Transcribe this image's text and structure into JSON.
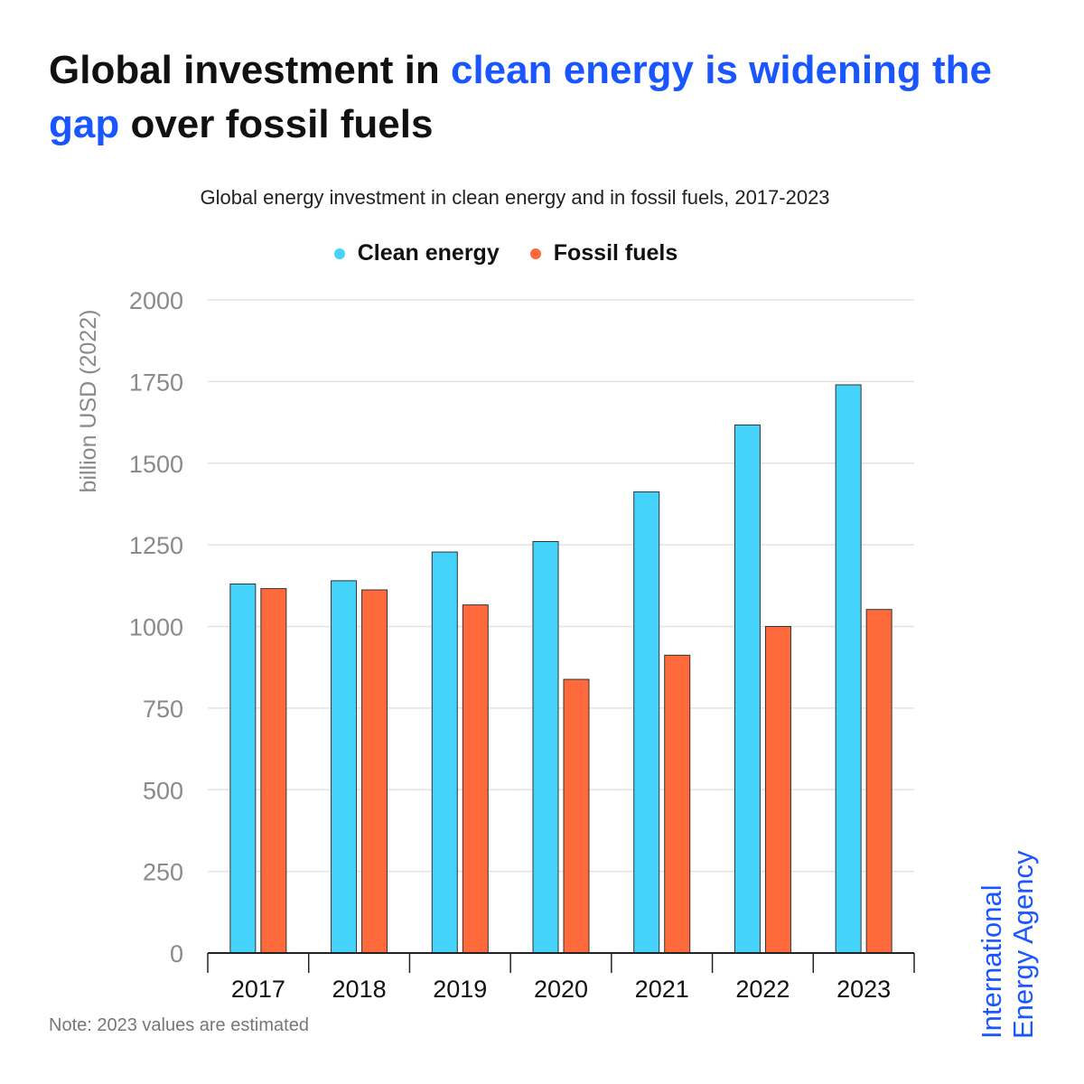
{
  "headline": {
    "part1": "Global investment in ",
    "highlight": "clean energy is widening the gap",
    "part2": " over fossil fuels"
  },
  "colors": {
    "highlight": "#1a56ff",
    "clean_energy": "#45d3fb",
    "fossil_fuels": "#ff6a3d"
  },
  "note": "Note: 2023 values are estimated",
  "brand": {
    "line1": "International",
    "line2": "Energy Agency"
  },
  "chart_data": {
    "type": "bar",
    "title": "Global energy investment in clean energy and in fossil fuels, 2017-2023",
    "xlabel": "",
    "ylabel": "billion USD (2022)",
    "categories": [
      "2017",
      "2018",
      "2019",
      "2020",
      "2021",
      "2022",
      "2023"
    ],
    "series": [
      {
        "name": "Clean energy",
        "color": "#45d3fb",
        "values": [
          1130,
          1140,
          1228,
          1260,
          1412,
          1617,
          1740
        ]
      },
      {
        "name": "Fossil fuels",
        "color": "#ff6a3d",
        "values": [
          1116,
          1112,
          1066,
          838,
          912,
          1000,
          1052
        ]
      }
    ],
    "ylim": [
      0,
      2000
    ],
    "yticks": [
      "0",
      "250",
      "500",
      "750",
      "1000",
      "1250",
      "1500",
      "1750",
      "2000"
    ],
    "grid": true,
    "legend_position": "top-center"
  }
}
